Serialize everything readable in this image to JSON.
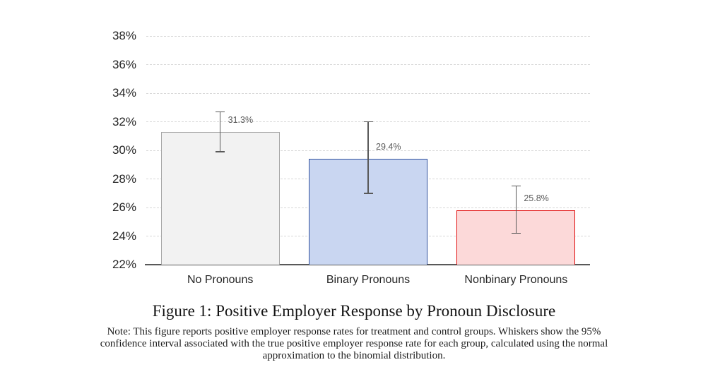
{
  "figure": {
    "caption": "Figure 1: Positive Employer Response by Pronoun Disclosure",
    "note_lines": [
      "Note: This figure reports positive employer response rates for treatment and control groups. Whiskers show the 95%",
      "confidence interval associated with the true positive employer response rate for each group, calculated using the normal",
      "approximation to the binomial distribution."
    ]
  },
  "chart_data": {
    "type": "bar",
    "title": "Positive Employer Response by Pronoun Disclosure",
    "categories": [
      "No Pronouns",
      "Binary Pronouns",
      "Nonbinary Pronouns"
    ],
    "values": [
      31.3,
      29.4,
      25.8
    ],
    "value_labels": [
      "31.3%",
      "29.4%",
      "25.8%"
    ],
    "error_low": [
      29.9,
      27.0,
      24.2
    ],
    "error_high": [
      32.7,
      32.0,
      27.5
    ],
    "xlabel": "",
    "ylabel": "",
    "ylim": [
      22,
      38
    ],
    "ytick_labels": [
      "22%",
      "24%",
      "26%",
      "28%",
      "30%",
      "32%",
      "34%",
      "36%",
      "38%"
    ],
    "grid": "horizontal-dashed",
    "legend": "none",
    "colors": {
      "bar_fills": [
        "#f2f2f2",
        "#c9d6f1",
        "#fcd9d9"
      ],
      "bar_borders": [
        "#a6a6a6",
        "#2e4f9c",
        "#e00c0c"
      ],
      "gridline": "#d8d8d8",
      "axis_line": "#595959",
      "whisker": "#595959",
      "value_label": "#595959",
      "tick_label": "#262626"
    }
  }
}
